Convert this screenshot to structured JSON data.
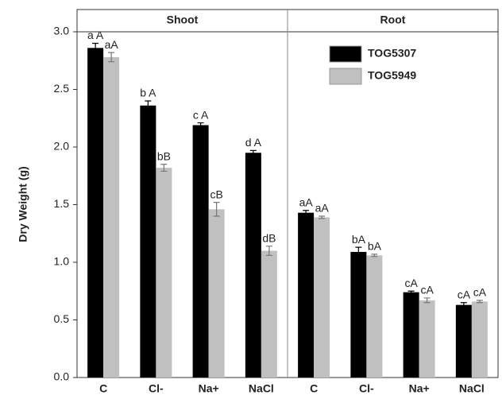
{
  "chart_data": {
    "type": "bar",
    "y_label": "Dry Weight (g)",
    "groups": [
      "Shoot",
      "Root"
    ],
    "categories": [
      "C",
      "Cl-",
      "Na+",
      "NaCl",
      "C",
      "Cl-",
      "Na+",
      "NaCl"
    ],
    "series": [
      {
        "name": "TOG5307",
        "color": "#000000",
        "values": [
          2.86,
          2.36,
          2.19,
          1.95,
          1.43,
          1.09,
          0.74,
          0.63
        ],
        "errors": [
          0.04,
          0.04,
          0.02,
          0.02,
          0.02,
          0.04,
          0.01,
          0.02
        ],
        "letters": [
          "a A",
          "b A",
          "c A",
          "d A",
          "aA",
          "bA",
          "cA",
          "cA"
        ]
      },
      {
        "name": "TOG5949",
        "color": "#c0c0c0",
        "values": [
          2.78,
          1.82,
          1.46,
          1.1,
          1.39,
          1.06,
          0.67,
          0.66
        ],
        "errors": [
          0.04,
          0.03,
          0.06,
          0.04,
          0.01,
          0.01,
          0.02,
          0.01
        ],
        "letters": [
          "aA",
          "bB",
          "cB",
          "dB",
          "aA",
          "bA",
          "cA",
          "cA"
        ]
      }
    ],
    "ylim": [
      0,
      3
    ],
    "yticks": [
      {
        "value": 0,
        "label": "0.0"
      },
      0.5,
      {
        "value": 1,
        "label": "1.0"
      },
      1.5,
      {
        "value": 2,
        "label": "2.0"
      },
      2.5,
      {
        "value": 3,
        "label": "3.0"
      }
    ]
  }
}
